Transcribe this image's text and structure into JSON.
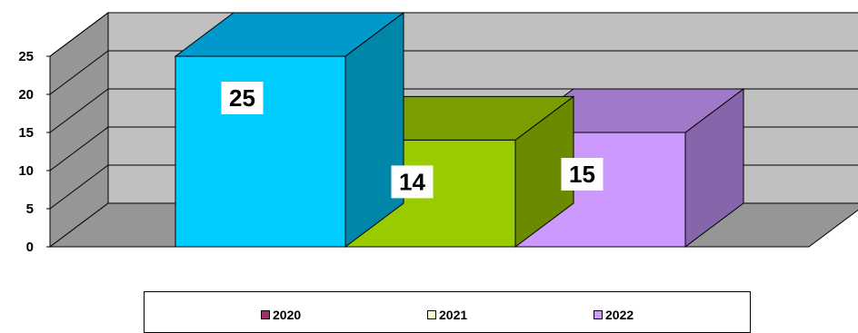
{
  "chart_data": {
    "type": "bar",
    "title": "",
    "xlabel": "",
    "ylabel": "",
    "ylim": [
      0,
      25
    ],
    "yticks": [
      "0",
      "5",
      "10",
      "15",
      "20",
      "25"
    ],
    "grid": true,
    "legend_position": "bottom",
    "series": [
      {
        "name": "2020",
        "value": 25,
        "label": "25",
        "color": "#00ccff",
        "top_color": "#0099cc",
        "side_color": "#0086a8",
        "legend_color": "#993366"
      },
      {
        "name": "2021",
        "value": 14,
        "label": "14",
        "color": "#99cc00",
        "top_color": "#7a9e00",
        "side_color": "#6b8a00",
        "legend_color": "#ffffcc"
      },
      {
        "name": "2022",
        "value": 15,
        "label": "15",
        "color": "#cc99ff",
        "top_color": "#a07ac8",
        "side_color": "#8566aa",
        "legend_color": "#cc99ff"
      }
    ]
  }
}
